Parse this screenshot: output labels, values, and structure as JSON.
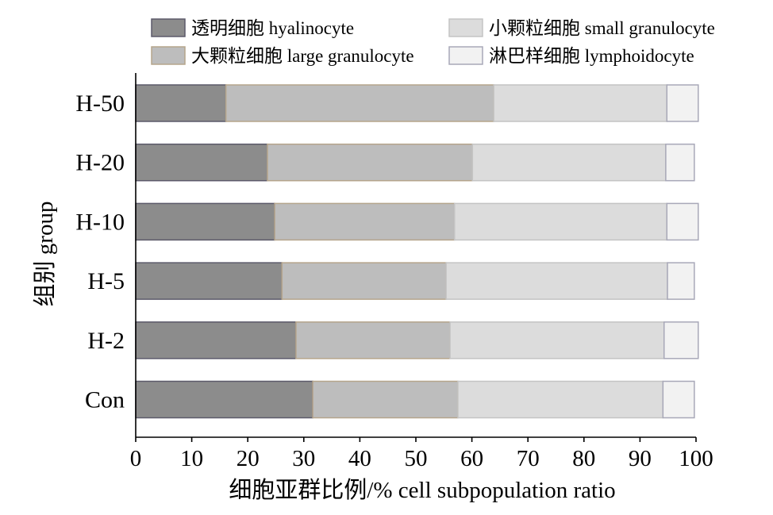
{
  "chart_data": {
    "type": "bar",
    "orientation": "horizontal",
    "stacked": true,
    "categories": [
      "H-50",
      "H-20",
      "H-10",
      "H-5",
      "H-2",
      "Con"
    ],
    "series": [
      {
        "name": "透明细胞 hyalinocyte",
        "values": [
          16.1,
          23.5,
          24.8,
          26.1,
          28.6,
          31.6
        ],
        "color": "#8c8c8c",
        "edge": "#5c5a6a"
      },
      {
        "name": "大颗粒细胞 large granulocyte",
        "values": [
          47.8,
          36.6,
          32.1,
          29.3,
          27.5,
          25.9
        ],
        "color": "#bdbdbd",
        "edge": "#b5a58c"
      },
      {
        "name": "小颗粒细胞 small granulocyte",
        "values": [
          30.9,
          34.5,
          37.9,
          39.5,
          38.2,
          36.6
        ],
        "color": "#dcdcdc",
        "edge": "#c4c4c4"
      },
      {
        "name": "淋巴样细胞 lymphoidocyte",
        "values": [
          5.6,
          5.1,
          5.6,
          4.8,
          6.1,
          5.6
        ],
        "color": "#f2f2f2",
        "edge": "#a8a8b8"
      }
    ],
    "xlabel": "细胞亚群比例/% cell subpopulation ratio",
    "ylabel": "组别 group",
    "xlim": [
      0,
      100
    ],
    "xticks": [
      0,
      10,
      20,
      30,
      40,
      50,
      60,
      70,
      80,
      90,
      100
    ],
    "grid": false,
    "legend": "top"
  }
}
